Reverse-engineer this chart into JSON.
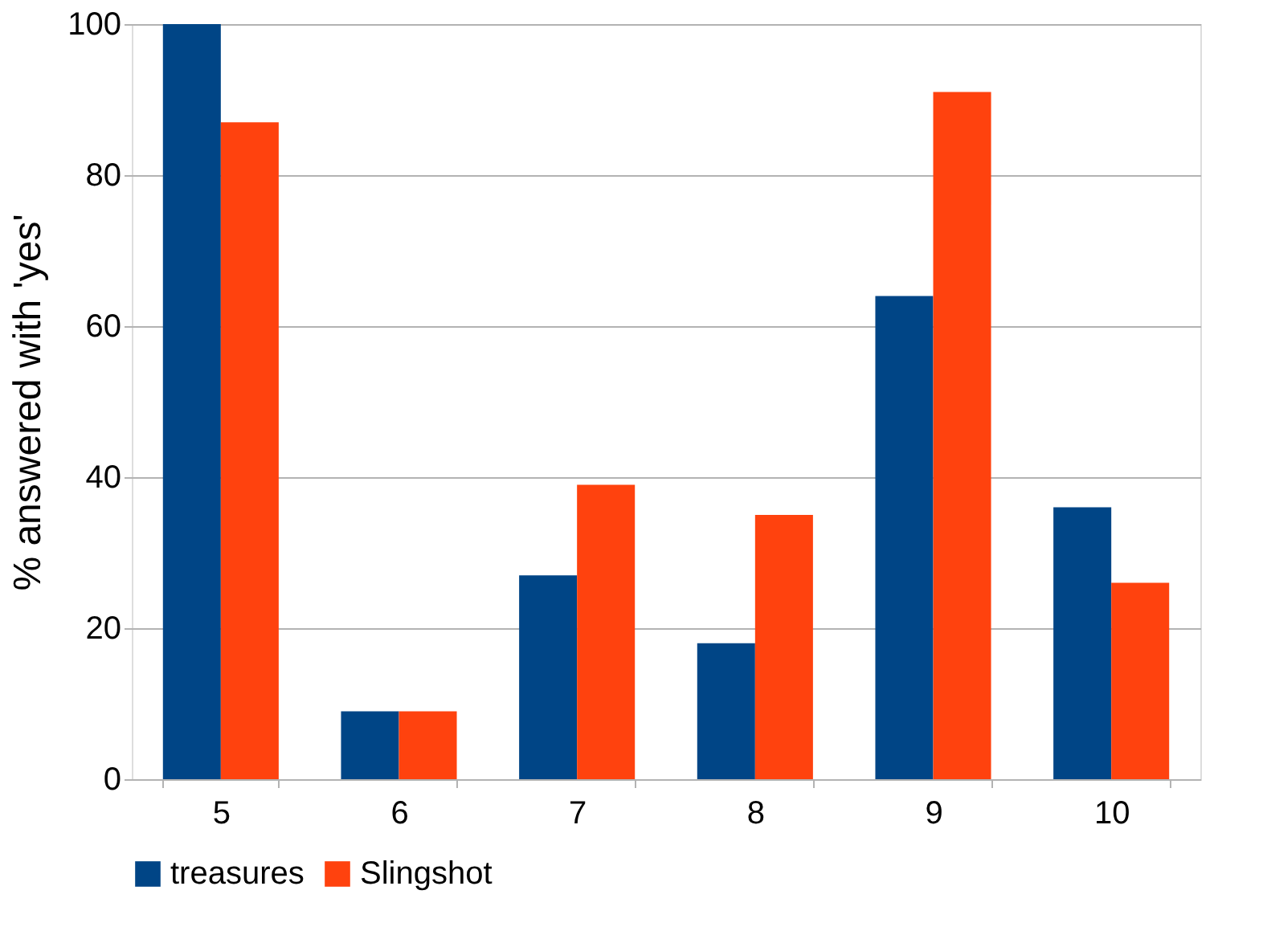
{
  "chart_data": {
    "type": "bar",
    "ylabel": "% answered with 'yes'",
    "categories": [
      "5",
      "6",
      "7",
      "8",
      "9",
      "10"
    ],
    "series": [
      {
        "name": "treasures",
        "color": "#004586",
        "values": [
          100,
          9,
          27,
          18,
          64,
          36
        ]
      },
      {
        "name": "Slingshot",
        "color": "#ff420e",
        "values": [
          87,
          9,
          39,
          35,
          91,
          26
        ]
      }
    ],
    "ylim": [
      0,
      100
    ],
    "yticks": [
      0,
      20,
      40,
      60,
      80,
      100
    ],
    "grid": "y",
    "legend": "bottom"
  }
}
